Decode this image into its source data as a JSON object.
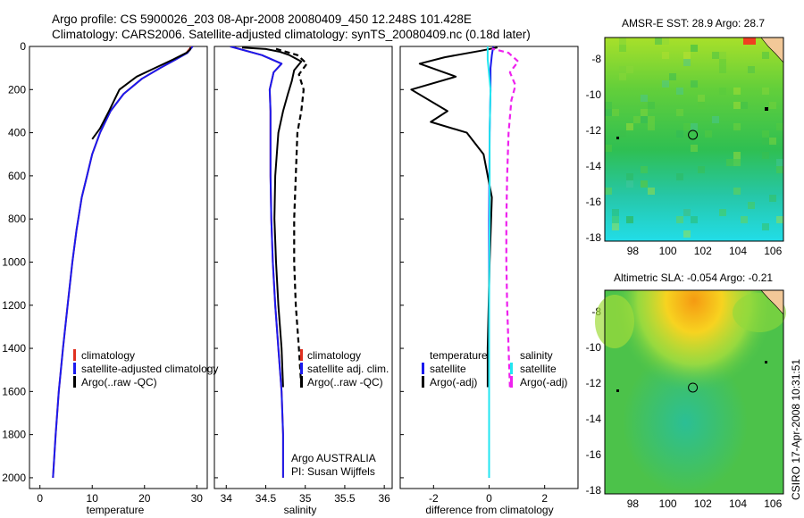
{
  "header": {
    "line1": "Argo profile: CS 5900026_203 08-Apr-2008 20080409_450 12.248S 101.428E",
    "line2": "Climatology: CARS2006. Satellite-adjusted climatology: synTS_20080409.nc (0.18d later)"
  },
  "footer_stamp": "CSIRO 17-Apr-2008 10:31:51",
  "colors": {
    "climatology": "#e03020",
    "satellite": "#1a1aee",
    "argo": "#000000",
    "salinity_diff": "#ee22ee",
    "temperature_diff_sat": "#22e6f0"
  },
  "chart_data": [
    {
      "type": "line",
      "panel": "temperature",
      "xlabel": "temperature",
      "ylabel": "",
      "xlim": [
        -2,
        32
      ],
      "ylim": [
        2050,
        0
      ],
      "x_ticks": [
        0,
        10,
        20,
        30
      ],
      "y_ticks": [
        0,
        200,
        400,
        600,
        800,
        1000,
        1200,
        1400,
        1600,
        1800,
        2000
      ],
      "legend": [
        "climatology",
        "satellite-adjusted climatology",
        "Argo(..raw -QC)"
      ],
      "series": [
        {
          "name": "climatology",
          "style": "solid",
          "x": [
            2.5,
            3.0,
            3.6,
            4.4,
            5.3,
            6.2,
            7.0,
            8.0,
            9.0,
            10.0,
            11.5,
            13.5,
            16.0,
            19.5,
            23.0,
            26.0,
            28.0,
            29.0
          ],
          "y": [
            2000,
            1800,
            1600,
            1400,
            1200,
            1000,
            850,
            700,
            600,
            500,
            400,
            300,
            220,
            150,
            100,
            60,
            30,
            0
          ]
        },
        {
          "name": "satellite-adjusted climatology",
          "style": "solid",
          "x": [
            2.5,
            3.0,
            3.6,
            4.4,
            5.3,
            6.2,
            7.0,
            8.0,
            9.0,
            10.0,
            11.5,
            13.5,
            16.0,
            19.5,
            23.0,
            26.0,
            28.2,
            29.2
          ],
          "y": [
            2000,
            1800,
            1600,
            1400,
            1200,
            1000,
            850,
            700,
            600,
            500,
            400,
            300,
            220,
            150,
            100,
            60,
            30,
            0
          ]
        },
        {
          "name": "Argo(..raw -QC)",
          "style": "solid",
          "x": [
            10.0,
            11.5,
            13.2,
            15.2,
            18.5,
            22.0,
            25.5,
            28.0,
            28.7,
            28.8
          ],
          "y": [
            430,
            380,
            300,
            200,
            140,
            100,
            60,
            30,
            15,
            5
          ]
        }
      ]
    },
    {
      "type": "line",
      "panel": "salinity",
      "xlabel": "salinity",
      "ylabel": "",
      "xlim": [
        33.85,
        36.1
      ],
      "ylim": [
        2050,
        0
      ],
      "x_ticks": [
        34,
        34.5,
        35,
        35.5,
        36
      ],
      "legend": [
        "climatology",
        "satellite adj. clim.",
        "Argo(..raw -QC)"
      ],
      "annotation": [
        "Argo AUSTRALIA",
        "PI: Susan Wijffels"
      ],
      "series": [
        {
          "name": "climatology",
          "style": "solid",
          "x": [
            34.72,
            34.72,
            34.7,
            34.66,
            34.62,
            34.59,
            34.57,
            34.56,
            34.56,
            34.56,
            34.55,
            34.6,
            34.7,
            34.45,
            34.05
          ],
          "y": [
            2000,
            1800,
            1600,
            1400,
            1200,
            1000,
            800,
            600,
            400,
            300,
            200,
            120,
            80,
            40,
            0
          ]
        },
        {
          "name": "satellite adj. clim.",
          "style": "solid",
          "x": [
            34.72,
            34.72,
            34.7,
            34.66,
            34.62,
            34.59,
            34.57,
            34.56,
            34.56,
            34.56,
            34.55,
            34.6,
            34.7,
            34.45,
            34.05
          ],
          "y": [
            2000,
            1800,
            1600,
            1400,
            1200,
            1000,
            800,
            600,
            400,
            300,
            200,
            120,
            80,
            40,
            0
          ]
        },
        {
          "name": "Argo(..raw -QC)",
          "style": "solid",
          "x": [
            34.72,
            34.7,
            34.66,
            34.63,
            34.61,
            34.62,
            34.66,
            34.72,
            34.78,
            34.83,
            34.86,
            34.95,
            34.8,
            34.68,
            34.5,
            34.2
          ],
          "y": [
            1580,
            1400,
            1200,
            1000,
            800,
            600,
            400,
            300,
            220,
            160,
            110,
            70,
            40,
            25,
            12,
            5
          ]
        },
        {
          "name": "Argo salinity dashed",
          "style": "dashed",
          "x": [
            34.95,
            34.92,
            34.88,
            34.86,
            34.86,
            34.88,
            34.9,
            34.95,
            34.98,
            34.92,
            35.02,
            34.9,
            34.6
          ],
          "y": [
            1580,
            1400,
            1200,
            1000,
            800,
            600,
            400,
            300,
            200,
            130,
            80,
            40,
            8
          ]
        }
      ]
    },
    {
      "type": "line",
      "panel": "difference",
      "xlabel": "difference from climatology",
      "ylabel": "",
      "xlim": [
        -3.2,
        3.2
      ],
      "ylim": [
        2050,
        0
      ],
      "x_ticks": [
        -2,
        0,
        2
      ],
      "legend_left": [
        "temperature",
        "satellite",
        "Argo(-adj)"
      ],
      "legend_right": [
        "salinity",
        "satellite",
        "Argo(-adj)"
      ],
      "series": [
        {
          "name": "temperature satellite",
          "style": "solid",
          "x": [
            0.0,
            0.0,
            0.0,
            0.0,
            0.02,
            0.05,
            0.05,
            0.1,
            0.15
          ],
          "y": [
            2000,
            1600,
            1200,
            800,
            400,
            200,
            100,
            40,
            0
          ]
        },
        {
          "name": "temperature Argo(-adj)",
          "style": "solid",
          "x": [
            -0.05,
            -0.05,
            0.02,
            0.1,
            -0.2,
            -0.8,
            -2.1,
            -1.5,
            -2.8,
            -1.2,
            -2.5,
            -1.6,
            -0.3,
            0.3
          ],
          "y": [
            1580,
            1400,
            1000,
            700,
            500,
            400,
            350,
            300,
            200,
            140,
            80,
            50,
            20,
            5
          ]
        },
        {
          "name": "salinity satellite",
          "style": "solid",
          "x": [
            0.0,
            0.0,
            0.0,
            0.02,
            0.02,
            0.05,
            -0.05,
            -0.05
          ],
          "y": [
            2000,
            1600,
            1200,
            800,
            400,
            200,
            60,
            0
          ]
        },
        {
          "name": "salinity Argo(-adj)",
          "style": "dashed",
          "x": [
            0.75,
            0.7,
            0.65,
            0.62,
            0.62,
            0.65,
            0.7,
            0.8,
            0.95,
            0.75,
            1.05,
            0.7,
            0.1
          ],
          "y": [
            1580,
            1400,
            1200,
            1000,
            800,
            600,
            400,
            250,
            180,
            120,
            70,
            30,
            10
          ]
        }
      ]
    },
    {
      "type": "heatmap",
      "panel": "sst-map",
      "title": "AMSR-E SST: 28.9 Argo: 28.7",
      "xlim": [
        96.4,
        106.6
      ],
      "ylim": [
        -18.2,
        -6.8
      ],
      "x_ticks": [
        98,
        100,
        102,
        104,
        106
      ],
      "y_ticks": [
        -8,
        -10,
        -12,
        -14,
        -16,
        -18
      ],
      "argo_position": {
        "lon": 101.428,
        "lat": -12.248
      }
    },
    {
      "type": "heatmap",
      "panel": "sla-map",
      "title": "Altimetric SLA: -0.054 Argo: -0.21",
      "xlim": [
        96.4,
        106.6
      ],
      "ylim": [
        -18.2,
        -6.8
      ],
      "x_ticks": [
        98,
        100,
        102,
        104,
        106
      ],
      "y_ticks": [
        -8,
        -10,
        -12,
        -14,
        -16,
        -18
      ],
      "argo_position": {
        "lon": 101.428,
        "lat": -12.248
      }
    }
  ]
}
